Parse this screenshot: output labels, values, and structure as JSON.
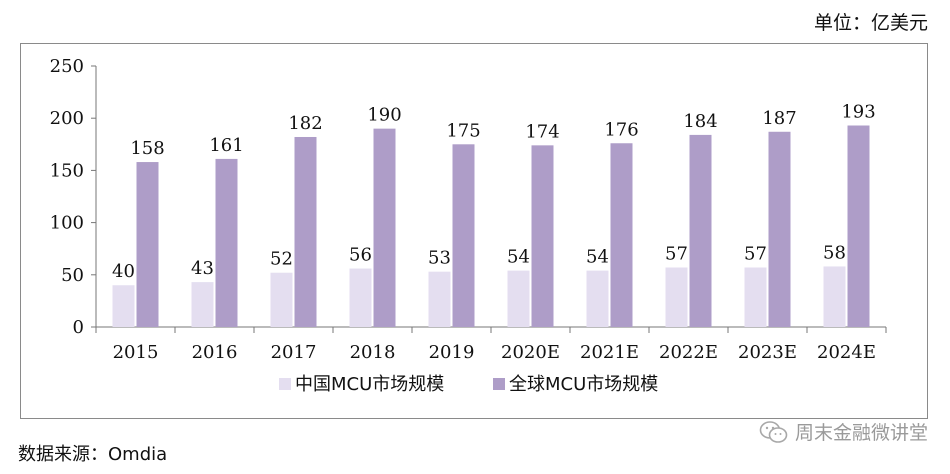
{
  "unit_label": "单位：亿美元",
  "source_label": "数据来源：Omdia",
  "watermark": {
    "text": "周末金融微讲堂",
    "icon": "wechat-icon"
  },
  "chart_data": {
    "type": "bar",
    "title": "",
    "xlabel": "",
    "ylabel": "",
    "ylim": [
      0,
      250
    ],
    "yticks": [
      0,
      50,
      100,
      150,
      200,
      250
    ],
    "grid": false,
    "legend_position": "bottom-center",
    "categories": [
      "2015",
      "2016",
      "2017",
      "2018",
      "2019",
      "2020E",
      "2021E",
      "2022E",
      "2023E",
      "2024E"
    ],
    "series": [
      {
        "name": "中国MCU市场规模",
        "color": "#e4def0",
        "values": [
          40,
          43,
          52,
          56,
          53,
          54,
          54,
          57,
          57,
          58
        ]
      },
      {
        "name": "全球MCU市场规模",
        "color": "#ae9dc8",
        "values": [
          158,
          161,
          182,
          190,
          175,
          174,
          176,
          184,
          187,
          193
        ]
      }
    ]
  }
}
